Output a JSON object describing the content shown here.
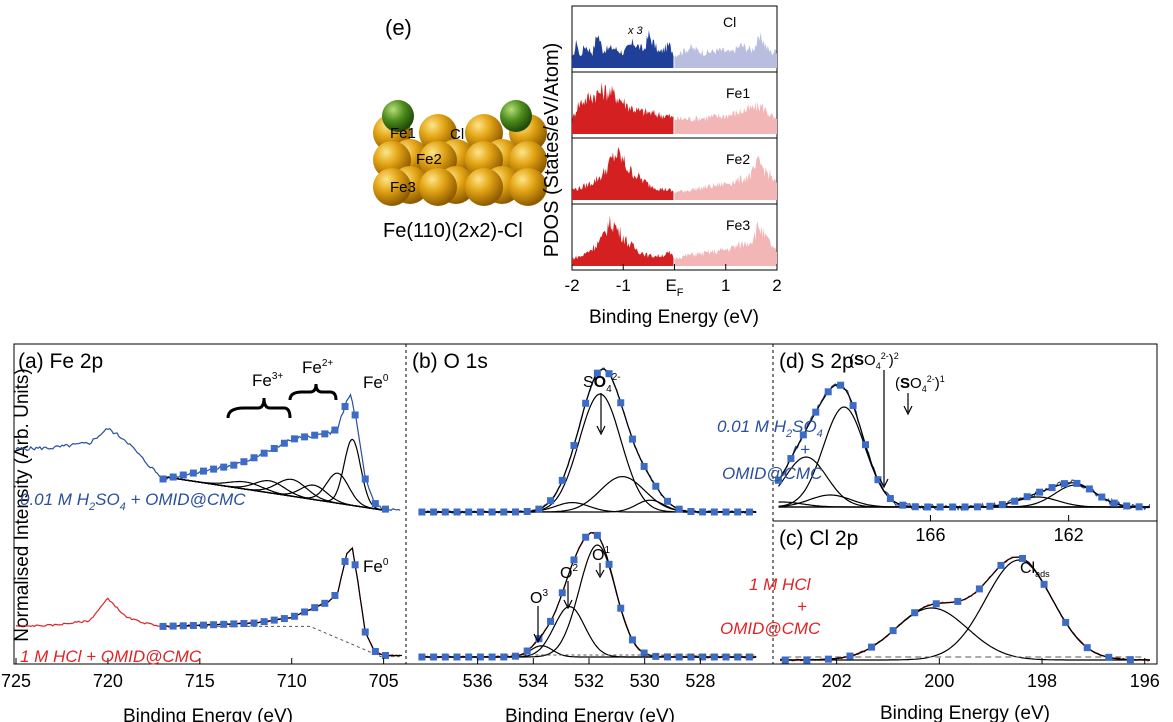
{
  "chart_data": [
    {
      "type": "area",
      "panel": "(e)",
      "structure_label": "Fe(110)(2x2)-Cl",
      "atom_labels": [
        "Cl",
        "Fe1",
        "Fe2",
        "Fe3"
      ],
      "ylabel": "PDOS (States/eV/Atom)",
      "xlabel": "Binding Energy (eV)",
      "xlim": [
        -2,
        2
      ],
      "xticks": [
        "-2",
        "-1",
        "E",
        "1",
        "2"
      ],
      "ef_subscript": "F",
      "scale_note": "x 3",
      "subpanels": [
        {
          "name": "Cl",
          "occupied": "#1f3f99",
          "unoccupied": "#b9bde0",
          "profile": [
            [
              -2,
              0.15
            ],
            [
              -1.9,
              0.55
            ],
            [
              -1.85,
              0.2
            ],
            [
              -1.75,
              0.45
            ],
            [
              -1.6,
              0.3
            ],
            [
              -1.5,
              0.7
            ],
            [
              -1.4,
              0.35
            ],
            [
              -1.2,
              0.4
            ],
            [
              -1.0,
              0.3
            ],
            [
              -0.8,
              0.5
            ],
            [
              -0.6,
              0.35
            ],
            [
              -0.5,
              0.65
            ],
            [
              -0.3,
              0.3
            ],
            [
              -0.1,
              0.45
            ],
            [
              0,
              0.25
            ],
            [
              0.3,
              0.4
            ],
            [
              0.6,
              0.3
            ],
            [
              0.9,
              0.35
            ],
            [
              1.1,
              0.3
            ],
            [
              1.3,
              0.45
            ],
            [
              1.5,
              0.35
            ],
            [
              1.7,
              0.6
            ],
            [
              1.8,
              0.4
            ],
            [
              1.9,
              0.3
            ],
            [
              2,
              0.35
            ]
          ]
        },
        {
          "name": "Fe1",
          "occupied": "#d42020",
          "unoccupied": "#f3b6b6",
          "profile": [
            [
              -2,
              0.25
            ],
            [
              -1.9,
              0.55
            ],
            [
              -1.8,
              0.65
            ],
            [
              -1.6,
              0.75
            ],
            [
              -1.4,
              0.85
            ],
            [
              -1.25,
              0.82
            ],
            [
              -1.1,
              0.72
            ],
            [
              -0.9,
              0.55
            ],
            [
              -0.7,
              0.45
            ],
            [
              -0.5,
              0.42
            ],
            [
              -0.3,
              0.38
            ],
            [
              -0.1,
              0.35
            ],
            [
              0,
              0.3
            ],
            [
              0.3,
              0.3
            ],
            [
              0.6,
              0.32
            ],
            [
              0.9,
              0.35
            ],
            [
              1.1,
              0.38
            ],
            [
              1.3,
              0.45
            ],
            [
              1.5,
              0.5
            ],
            [
              1.7,
              0.55
            ],
            [
              1.8,
              0.45
            ],
            [
              1.9,
              0.35
            ],
            [
              2,
              0.25
            ]
          ]
        },
        {
          "name": "Fe2",
          "occupied": "#d42020",
          "unoccupied": "#f3b6b6",
          "profile": [
            [
              -2,
              0.2
            ],
            [
              -1.8,
              0.25
            ],
            [
              -1.6,
              0.35
            ],
            [
              -1.4,
              0.5
            ],
            [
              -1.25,
              0.75
            ],
            [
              -1.15,
              0.9
            ],
            [
              -1.05,
              0.85
            ],
            [
              -0.9,
              0.6
            ],
            [
              -0.7,
              0.45
            ],
            [
              -0.5,
              0.3
            ],
            [
              -0.3,
              0.22
            ],
            [
              -0.1,
              0.2
            ],
            [
              0,
              0.15
            ],
            [
              0.3,
              0.2
            ],
            [
              0.6,
              0.25
            ],
            [
              0.9,
              0.3
            ],
            [
              1.1,
              0.35
            ],
            [
              1.3,
              0.4
            ],
            [
              1.5,
              0.5
            ],
            [
              1.65,
              0.75
            ],
            [
              1.75,
              0.6
            ],
            [
              1.9,
              0.45
            ],
            [
              2,
              0.3
            ]
          ]
        },
        {
          "name": "Fe3",
          "occupied": "#d42020",
          "unoccupied": "#f3b6b6",
          "profile": [
            [
              -2,
              0.15
            ],
            [
              -1.8,
              0.2
            ],
            [
              -1.6,
              0.35
            ],
            [
              -1.4,
              0.55
            ],
            [
              -1.3,
              0.8
            ],
            [
              -1.2,
              0.85
            ],
            [
              -1.1,
              0.7
            ],
            [
              -0.9,
              0.45
            ],
            [
              -0.7,
              0.3
            ],
            [
              -0.5,
              0.2
            ],
            [
              -0.3,
              0.2
            ],
            [
              -0.1,
              0.25
            ],
            [
              0,
              0.15
            ],
            [
              0.3,
              0.22
            ],
            [
              0.6,
              0.25
            ],
            [
              0.9,
              0.3
            ],
            [
              1.1,
              0.35
            ],
            [
              1.3,
              0.42
            ],
            [
              1.5,
              0.5
            ],
            [
              1.65,
              0.8
            ],
            [
              1.75,
              0.6
            ],
            [
              1.9,
              0.4
            ],
            [
              2,
              0.25
            ]
          ]
        }
      ]
    },
    {
      "type": "line",
      "panel": "(a) Fe 2p",
      "ylabel": "Normalised Intensity (Arb. Units)",
      "xlabel": "Binding Energy (eV)",
      "xlim": [
        725,
        704
      ],
      "xticks": [
        725,
        720,
        715,
        710,
        705
      ],
      "annotations": {
        "fe3": "Fe",
        "fe3_sup": "3+",
        "fe2": "Fe",
        "fe2_sup": "2+",
        "fe0_top": "Fe",
        "fe0_top_sup": "0",
        "fe0_bottom": "Fe",
        "fe0_bottom_sup": "0"
      },
      "conditions": {
        "top_part1": "0.01 M H",
        "top_sub": "2",
        "top_part2": "SO",
        "top_sub2": "4",
        "top_part3": " + OMID@CMC",
        "bottom": "1 M HCl + OMID@CMC"
      },
      "top_spectrum": {
        "color": "#2a4f9e",
        "x": [
          725,
          723,
          721,
          720,
          719,
          718,
          717,
          715,
          713,
          712,
          711,
          710,
          709,
          708,
          707.5,
          707,
          706.8,
          706.5,
          706,
          705.5,
          705,
          704
        ],
        "y": [
          0.55,
          0.56,
          0.6,
          0.72,
          0.62,
          0.45,
          0.3,
          0.36,
          0.42,
          0.48,
          0.55,
          0.63,
          0.66,
          0.68,
          0.72,
          0.95,
          1.0,
          0.8,
          0.3,
          0.1,
          0.05,
          0.04
        ]
      },
      "bottom_spectrum": {
        "color": "#e02424",
        "x": [
          725,
          723,
          721,
          720,
          719,
          718,
          717,
          715,
          712,
          710,
          708,
          707.5,
          707,
          706.7,
          706.4,
          706,
          705.5,
          705,
          704
        ],
        "y": [
          0.3,
          0.31,
          0.35,
          0.55,
          0.38,
          0.33,
          0.3,
          0.31,
          0.33,
          0.38,
          0.52,
          0.6,
          0.95,
          1.0,
          0.7,
          0.25,
          0.08,
          0.04,
          0.04
        ]
      }
    },
    {
      "type": "line",
      "panel": "(b) O 1s",
      "xlabel": "Binding Energy (eV)",
      "xlim": [
        538.5,
        525.5
      ],
      "xticks": [
        536,
        534,
        532,
        530,
        528
      ],
      "annotations": {
        "so4_s": "S",
        "so4_o": "O",
        "so4_sub": "4",
        "so4_sup": "2-",
        "o1": "O",
        "o1_sup": "1",
        "o2": "O",
        "o2_sup": "2",
        "o3": "O",
        "o3_sup": "3"
      },
      "top_spectrum": {
        "peaks": [
          {
            "center": 531.6,
            "amp": 1.0,
            "width": 0.75
          },
          {
            "center": 530.8,
            "amp": 0.3,
            "width": 0.8
          },
          {
            "center": 532.6,
            "amp": 0.08,
            "width": 0.6
          },
          {
            "center": 529.8,
            "amp": 0.1,
            "width": 0.5
          }
        ]
      },
      "bottom_spectrum": {
        "peaks": [
          {
            "center": 531.7,
            "amp": 1.0,
            "width": 0.65
          },
          {
            "center": 532.7,
            "amp": 0.45,
            "width": 0.55
          },
          {
            "center": 533.7,
            "amp": 0.1,
            "width": 0.4
          }
        ]
      }
    },
    {
      "type": "line",
      "panel": "(d) S 2p",
      "xlim": [
        170.5,
        159.5
      ],
      "xticks": [
        166,
        162
      ],
      "annotations": {
        "so4_2_open": "(",
        "so4_2_s": "S",
        "so4_2_o": "O",
        "so4_2_sub": "4",
        "so4_2_sup": "2-",
        "so4_2_close": ")",
        "so4_2_exp": "2",
        "so4_1_open": "(",
        "so4_1_s": "S",
        "so4_1_o": "O",
        "so4_1_sub": "4",
        "so4_1_sup": "2-",
        "so4_1_close": ")",
        "so4_1_exp": "1"
      },
      "condition": {
        "line1_a": "0.01 M H",
        "line1_sub": "2",
        "line1_b": "SO",
        "line1_sub2": "4",
        "line2": "+",
        "line3": "OMID@CMC"
      },
      "spectrum": {
        "peaks": [
          {
            "center": 168.5,
            "amp": 1.0,
            "width": 0.6
          },
          {
            "center": 169.6,
            "amp": 0.5,
            "width": 0.6
          },
          {
            "center": 168.9,
            "amp": 0.12,
            "width": 0.6
          },
          {
            "center": 170.3,
            "amp": 0.05,
            "width": 0.6
          },
          {
            "center": 161.8,
            "amp": 0.22,
            "width": 0.6
          },
          {
            "center": 162.9,
            "amp": 0.1,
            "width": 0.6
          }
        ]
      }
    },
    {
      "type": "line",
      "panel": "(c) Cl 2p",
      "xlabel": "Binding Energy (eV)",
      "xlim": [
        203.2,
        195.8
      ],
      "xticks": [
        202,
        200,
        198,
        196
      ],
      "annotations": {
        "cl_ads": "Cl",
        "cl_ads_sub": "ads"
      },
      "condition": {
        "line1": "1 M HCl",
        "line2": "+",
        "line3": "OMID@CMC"
      },
      "spectrum": {
        "peaks": [
          {
            "center": 198.45,
            "amp": 1.0,
            "width": 0.65
          },
          {
            "center": 200.15,
            "amp": 0.52,
            "width": 0.7
          }
        ]
      }
    }
  ]
}
